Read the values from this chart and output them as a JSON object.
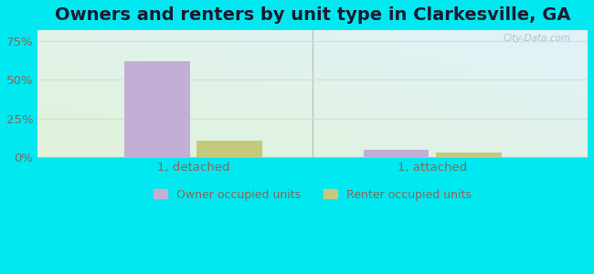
{
  "title": "Owners and renters by unit type in Clarkesville, GA",
  "categories": [
    "1, detached",
    "1, attached"
  ],
  "owner_values": [
    62,
    5
  ],
  "renter_values": [
    11,
    3
  ],
  "owner_color": "#c3aed6",
  "renter_color": "#c5c97e",
  "background_color": "#00e8f0",
  "yticks": [
    0,
    25,
    50,
    75
  ],
  "ytick_labels": [
    "0%",
    "25%",
    "50%",
    "75%"
  ],
  "ylim": [
    0,
    82
  ],
  "bar_width": 0.12,
  "legend_owner": "Owner occupied units",
  "legend_renter": "Renter occupied units",
  "watermark": "City-Data.com",
  "title_fontsize": 14,
  "tick_color": "#886655",
  "grid_color": "#ddddcc"
}
